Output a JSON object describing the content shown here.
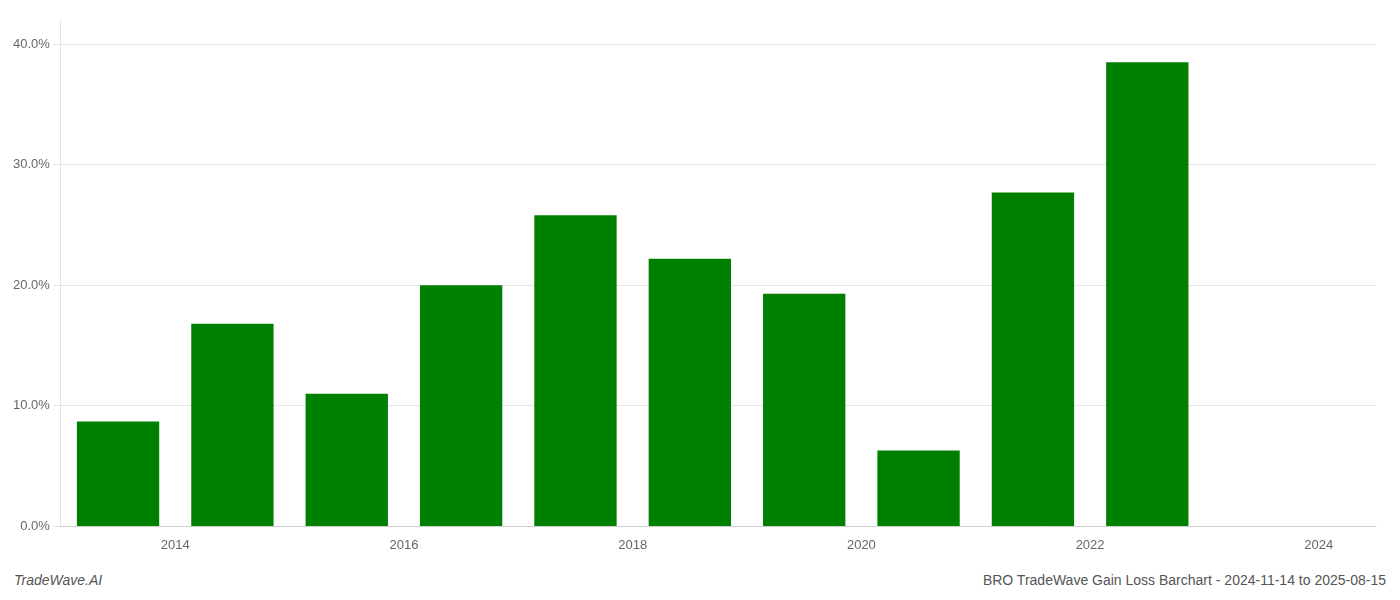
{
  "chart_data": {
    "type": "bar",
    "x": [
      2013.5,
      2014.5,
      2015.5,
      2016.5,
      2017.5,
      2018.5,
      2019.5,
      2020.5,
      2021.5,
      2022.5
    ],
    "values": [
      0.087,
      0.168,
      0.11,
      0.2,
      0.258,
      0.222,
      0.193,
      0.063,
      0.277,
      0.385
    ],
    "color": "#008000",
    "xlim": [
      2013.0,
      2024.5
    ],
    "xticks": [
      2014,
      2016,
      2018,
      2020,
      2022,
      2024
    ],
    "ylim": [
      0,
      0.42
    ],
    "yticks": [
      {
        "value": 0.0,
        "label": "0.0%"
      },
      {
        "value": 0.1,
        "label": "10.0%"
      },
      {
        "value": 0.2,
        "label": "20.0%"
      },
      {
        "value": 0.3,
        "label": "30.0%"
      },
      {
        "value": 0.4,
        "label": "40.0%"
      }
    ],
    "grid": true,
    "annotations": [
      "TradeWave.AI",
      "BRO TradeWave Gain Loss Barchart - 2024-11-14 to 2025-08-15"
    ]
  }
}
